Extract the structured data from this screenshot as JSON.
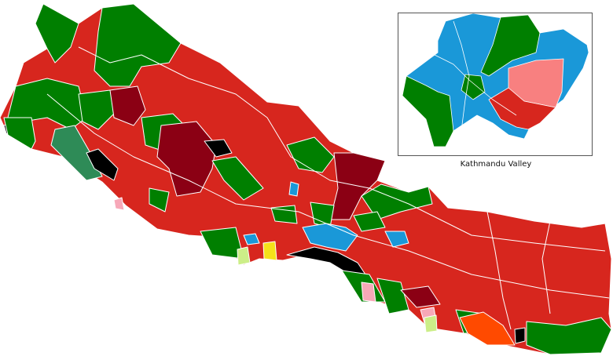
{
  "inset": {
    "label": "Kathmandu Valley"
  },
  "colors": {
    "red": "#d7261e",
    "green": "#007f00",
    "dark_red": "#8b0014",
    "black": "#000000",
    "blue": "#1a98d8",
    "pink": "#f7a8b8",
    "salmon": "#f88080",
    "light_green": "#ccee88",
    "yellow": "#f5e11a",
    "orange": "#ff4a00",
    "sea_green": "#2e8b57",
    "border": "#ffffff"
  }
}
